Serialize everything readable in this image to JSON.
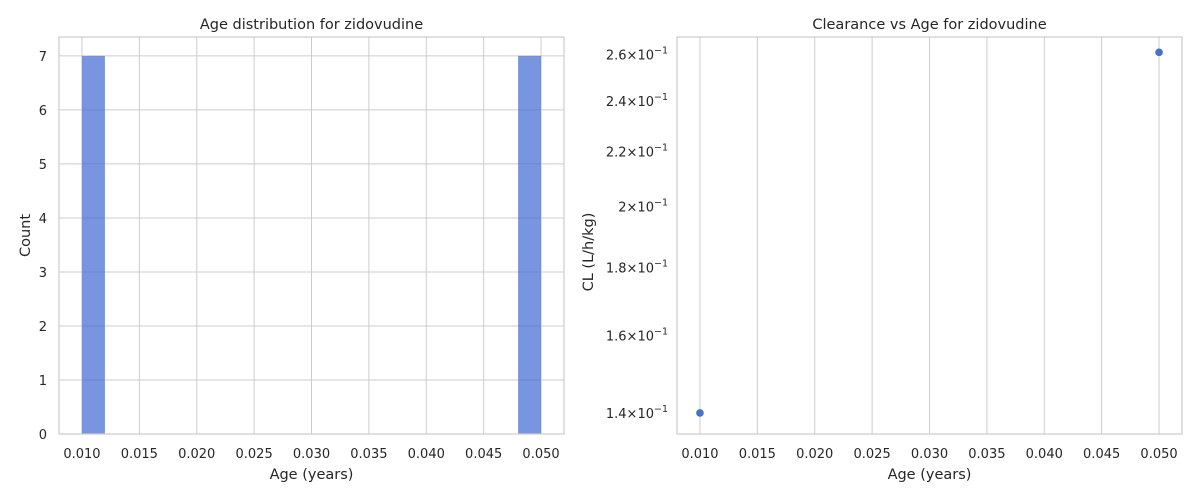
{
  "chart_data": [
    {
      "type": "bar",
      "title": "Age distribution for zidovudine",
      "xlabel": "Age (years)",
      "ylabel": "Count",
      "xlim": [
        0.008,
        0.052
      ],
      "ylim": [
        0,
        7.35
      ],
      "xticks": [
        "0.010",
        "0.015",
        "0.020",
        "0.025",
        "0.030",
        "0.035",
        "0.040",
        "0.045",
        "0.050"
      ],
      "yticks": [
        "0",
        "1",
        "2",
        "3",
        "4",
        "5",
        "6",
        "7"
      ],
      "bars": [
        {
          "x0": 0.01,
          "x1": 0.012,
          "count": 7
        },
        {
          "x0": 0.048,
          "x1": 0.05,
          "count": 7
        }
      ],
      "grid": true,
      "bar_color": "#4c72d4"
    },
    {
      "type": "scatter",
      "title": "Clearance vs Age for zidovudine",
      "xlabel": "Age (years)",
      "ylabel": "CL (L/h/kg)",
      "yscale": "log",
      "xlim": [
        0.008,
        0.052
      ],
      "ylim": [
        0.135,
        0.268
      ],
      "xticks": [
        "0.010",
        "0.015",
        "0.020",
        "0.025",
        "0.030",
        "0.035",
        "0.040",
        "0.045",
        "0.050"
      ],
      "yticks": [
        {
          "base": "1.4",
          "value": 0.14
        },
        {
          "base": "1.6",
          "value": 0.16
        },
        {
          "base": "1.8",
          "value": 0.18
        },
        {
          "base": "2",
          "value": 0.2
        },
        {
          "base": "2.2",
          "value": 0.22
        },
        {
          "base": "2.4",
          "value": 0.24
        },
        {
          "base": "2.6",
          "value": 0.26
        }
      ],
      "ytick_suffix": "10",
      "ytick_exponent": "−1",
      "points": [
        {
          "x": 0.01,
          "y": 0.14
        },
        {
          "x": 0.05,
          "y": 0.261
        }
      ],
      "grid": true,
      "point_color": "#4472c4"
    }
  ]
}
